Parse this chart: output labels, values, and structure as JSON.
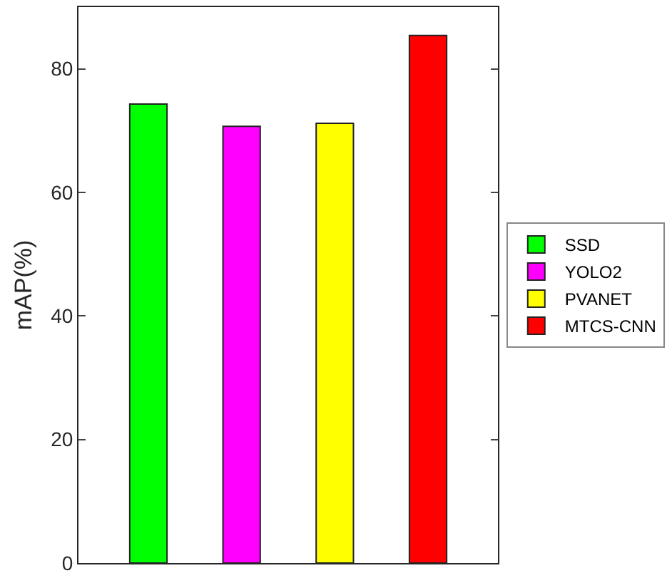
{
  "chart_data": {
    "type": "bar",
    "ylabel": "mAP(%)",
    "categories": [
      null,
      null,
      null,
      null
    ],
    "series": [
      {
        "name": "SSD",
        "color": "#00ff00",
        "values": [
          74.3,
          null,
          null,
          null
        ]
      },
      {
        "name": "YOLO2",
        "color": "#ff00ff",
        "values": [
          null,
          70.7,
          null,
          null
        ]
      },
      {
        "name": "PVANET",
        "color": "#ffff00",
        "values": [
          null,
          null,
          71.2,
          null
        ]
      },
      {
        "name": "MTCS-CNN",
        "color": "#ff0000",
        "values": [
          null,
          null,
          null,
          85.4
        ]
      }
    ],
    "ylim": [
      0,
      90
    ],
    "yticks": [
      0,
      20,
      40,
      60,
      80
    ],
    "legend": "right",
    "tick_labels": "y"
  }
}
